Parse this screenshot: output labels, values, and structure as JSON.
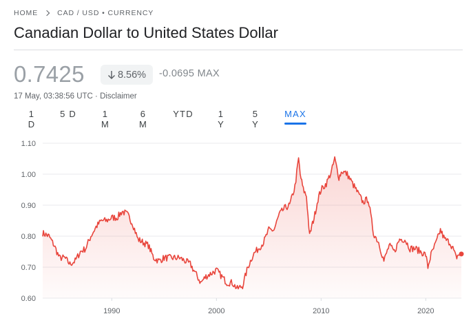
{
  "breadcrumb": {
    "home": "HOME",
    "pair": "CAD / USD • CURRENCY"
  },
  "header": {
    "title": "Canadian Dollar to United States Dollar"
  },
  "quote": {
    "price": "0.7425",
    "change_percent": "8.56%",
    "change_direction": "down",
    "change_absolute": "-0.0695 MAX",
    "timestamp": "17 May, 03:38:56 UTC · Disclaimer"
  },
  "range_tabs": [
    {
      "label": "1 D",
      "active": false
    },
    {
      "label": "5 D",
      "active": false
    },
    {
      "label": "1 M",
      "active": false
    },
    {
      "label": "6 M",
      "active": false
    },
    {
      "label": "YTD",
      "active": false
    },
    {
      "label": "1 Y",
      "active": false
    },
    {
      "label": "5 Y",
      "active": false
    },
    {
      "label": "MAX",
      "active": true
    }
  ],
  "colors": {
    "line": "#e8453c",
    "active_tab": "#1a73e8",
    "muted_text": "#5f6368"
  },
  "chart_data": {
    "type": "area",
    "title": "",
    "xlabel": "",
    "ylabel": "",
    "xlim": [
      1983.4,
      2023.4
    ],
    "ylim": [
      0.6,
      1.1
    ],
    "x_ticks": [
      1990,
      2000,
      2010,
      2020
    ],
    "y_ticks": [
      "0.60",
      "0.70",
      "0.80",
      "0.90",
      "1.00",
      "1.10"
    ],
    "grid": true,
    "series": [
      {
        "x": [
          1983.4,
          1984.0,
          1984.5,
          1985.0,
          1985.5,
          1986.0,
          1986.5,
          1987.0,
          1987.5,
          1988.0,
          1988.5,
          1989.0,
          1989.5,
          1990.0,
          1990.5,
          1991.0,
          1991.5,
          1992.0,
          1992.5,
          1993.0,
          1993.5,
          1994.0,
          1994.5,
          1995.0,
          1995.5,
          1996.0,
          1996.5,
          1997.0,
          1997.5,
          1998.0,
          1998.5,
          1999.0,
          1999.5,
          2000.0,
          2000.5,
          2001.0,
          2001.5,
          2002.0,
          2002.5,
          2003.0,
          2003.5,
          2004.0,
          2004.5,
          2005.0,
          2005.5,
          2006.0,
          2006.5,
          2007.0,
          2007.5,
          2007.85,
          2008.0,
          2008.3,
          2008.6,
          2008.9,
          2009.1,
          2009.4,
          2009.7,
          2010.0,
          2010.5,
          2011.0,
          2011.3,
          2011.7,
          2012.0,
          2012.5,
          2013.0,
          2013.5,
          2014.0,
          2014.5,
          2015.0,
          2015.5,
          2016.0,
          2016.5,
          2017.0,
          2017.5,
          2018.0,
          2018.5,
          2019.0,
          2019.5,
          2020.0,
          2020.2,
          2020.5,
          2021.0,
          2021.4,
          2021.8,
          2022.3,
          2022.6,
          2022.9,
          2023.1,
          2023.4
        ],
        "values": [
          0.81,
          0.8,
          0.77,
          0.73,
          0.73,
          0.71,
          0.72,
          0.75,
          0.76,
          0.8,
          0.83,
          0.85,
          0.85,
          0.86,
          0.86,
          0.88,
          0.87,
          0.84,
          0.79,
          0.78,
          0.77,
          0.73,
          0.72,
          0.73,
          0.73,
          0.73,
          0.73,
          0.72,
          0.71,
          0.68,
          0.65,
          0.67,
          0.68,
          0.69,
          0.67,
          0.65,
          0.65,
          0.63,
          0.64,
          0.7,
          0.74,
          0.76,
          0.78,
          0.82,
          0.82,
          0.87,
          0.89,
          0.9,
          0.96,
          1.05,
          1.0,
          0.95,
          0.93,
          0.8,
          0.83,
          0.87,
          0.92,
          0.95,
          0.97,
          1.01,
          1.05,
          0.99,
          1.01,
          1.0,
          0.97,
          0.94,
          0.91,
          0.92,
          0.81,
          0.78,
          0.72,
          0.77,
          0.75,
          0.79,
          0.79,
          0.76,
          0.76,
          0.75,
          0.74,
          0.7,
          0.74,
          0.78,
          0.82,
          0.79,
          0.78,
          0.76,
          0.73,
          0.74,
          0.7425
        ]
      }
    ]
  }
}
